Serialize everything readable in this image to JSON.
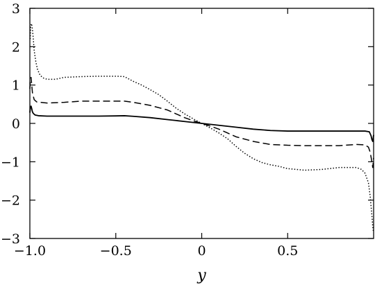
{
  "chart_data": {
    "type": "line",
    "title": "",
    "xlabel": "y",
    "ylabel": "",
    "xlim": [
      -1.0,
      1.0
    ],
    "ylim": [
      -3,
      3
    ],
    "grid": false,
    "legend": "none",
    "xticks": [
      -1.0,
      -0.5,
      0,
      0.5
    ],
    "xtick_labels": [
      "−1.0",
      "−0.5",
      "0",
      "0.5"
    ],
    "yticks": [
      -3,
      -2,
      -1,
      0,
      1,
      2,
      3
    ],
    "ytick_labels": [
      "−3",
      "−2",
      "−1",
      "0",
      "1",
      "2",
      "3"
    ],
    "series": [
      {
        "style": "solid",
        "color": "#000000",
        "points": [
          [
            -1.0,
            0.28
          ],
          [
            -0.997,
            0.42
          ],
          [
            -0.993,
            0.45
          ],
          [
            -0.99,
            0.4
          ],
          [
            -0.985,
            0.3
          ],
          [
            -0.98,
            0.26
          ],
          [
            -0.97,
            0.22
          ],
          [
            -0.95,
            0.2
          ],
          [
            -0.9,
            0.19
          ],
          [
            -0.8,
            0.19
          ],
          [
            -0.7,
            0.19
          ],
          [
            -0.6,
            0.19
          ],
          [
            -0.5,
            0.195
          ],
          [
            -0.45,
            0.2
          ],
          [
            -0.4,
            0.185
          ],
          [
            -0.3,
            0.15
          ],
          [
            -0.2,
            0.1
          ],
          [
            -0.1,
            0.05
          ],
          [
            0.0,
            0.0
          ],
          [
            0.1,
            -0.05
          ],
          [
            0.2,
            -0.1
          ],
          [
            0.3,
            -0.15
          ],
          [
            0.4,
            -0.185
          ],
          [
            0.5,
            -0.2
          ],
          [
            0.6,
            -0.2
          ],
          [
            0.7,
            -0.2
          ],
          [
            0.8,
            -0.2
          ],
          [
            0.9,
            -0.2
          ],
          [
            0.95,
            -0.2
          ],
          [
            0.975,
            -0.22
          ],
          [
            0.985,
            -0.32
          ],
          [
            0.99,
            -0.42
          ],
          [
            0.995,
            -0.47
          ],
          [
            1.0,
            -0.3
          ]
        ]
      },
      {
        "style": "dashed",
        "color": "#000000",
        "points": [
          [
            -1.0,
            0.9
          ],
          [
            -0.997,
            1.15
          ],
          [
            -0.993,
            1.2
          ],
          [
            -0.99,
            1.05
          ],
          [
            -0.985,
            0.8
          ],
          [
            -0.975,
            0.62
          ],
          [
            -0.96,
            0.56
          ],
          [
            -0.9,
            0.53
          ],
          [
            -0.8,
            0.55
          ],
          [
            -0.7,
            0.58
          ],
          [
            -0.6,
            0.58
          ],
          [
            -0.5,
            0.58
          ],
          [
            -0.45,
            0.58
          ],
          [
            -0.4,
            0.55
          ],
          [
            -0.3,
            0.47
          ],
          [
            -0.2,
            0.35
          ],
          [
            -0.15,
            0.25
          ],
          [
            -0.1,
            0.15
          ],
          [
            -0.05,
            0.07
          ],
          [
            0.0,
            0.0
          ],
          [
            0.05,
            -0.07
          ],
          [
            0.1,
            -0.15
          ],
          [
            0.15,
            -0.25
          ],
          [
            0.2,
            -0.35
          ],
          [
            0.3,
            -0.47
          ],
          [
            0.4,
            -0.55
          ],
          [
            0.5,
            -0.57
          ],
          [
            0.6,
            -0.58
          ],
          [
            0.7,
            -0.58
          ],
          [
            0.8,
            -0.58
          ],
          [
            0.9,
            -0.55
          ],
          [
            0.95,
            -0.56
          ],
          [
            0.97,
            -0.62
          ],
          [
            0.98,
            -0.75
          ],
          [
            0.99,
            -1.0
          ],
          [
            0.995,
            -1.15
          ],
          [
            1.0,
            -0.9
          ]
        ]
      },
      {
        "style": "dotted",
        "color": "#000000",
        "points": [
          [
            -0.998,
            2.2
          ],
          [
            -0.995,
            2.55
          ],
          [
            -0.99,
            2.6
          ],
          [
            -0.985,
            2.45
          ],
          [
            -0.98,
            2.2
          ],
          [
            -0.975,
            1.9
          ],
          [
            -0.965,
            1.6
          ],
          [
            -0.955,
            1.4
          ],
          [
            -0.94,
            1.25
          ],
          [
            -0.92,
            1.18
          ],
          [
            -0.9,
            1.15
          ],
          [
            -0.85,
            1.15
          ],
          [
            -0.8,
            1.2
          ],
          [
            -0.7,
            1.22
          ],
          [
            -0.6,
            1.23
          ],
          [
            -0.5,
            1.23
          ],
          [
            -0.45,
            1.22
          ],
          [
            -0.4,
            1.1
          ],
          [
            -0.35,
            1.0
          ],
          [
            -0.3,
            0.88
          ],
          [
            -0.25,
            0.75
          ],
          [
            -0.2,
            0.58
          ],
          [
            -0.15,
            0.4
          ],
          [
            -0.1,
            0.25
          ],
          [
            -0.05,
            0.12
          ],
          [
            0.0,
            0.0
          ],
          [
            0.05,
            -0.12
          ],
          [
            0.1,
            -0.25
          ],
          [
            0.15,
            -0.4
          ],
          [
            0.2,
            -0.6
          ],
          [
            0.25,
            -0.78
          ],
          [
            0.3,
            -0.92
          ],
          [
            0.35,
            -1.02
          ],
          [
            0.4,
            -1.08
          ],
          [
            0.45,
            -1.12
          ],
          [
            0.5,
            -1.18
          ],
          [
            0.55,
            -1.2
          ],
          [
            0.6,
            -1.22
          ],
          [
            0.7,
            -1.2
          ],
          [
            0.8,
            -1.15
          ],
          [
            0.9,
            -1.15
          ],
          [
            0.93,
            -1.2
          ],
          [
            0.95,
            -1.3
          ],
          [
            0.97,
            -1.55
          ],
          [
            0.98,
            -1.9
          ],
          [
            0.99,
            -2.4
          ],
          [
            0.995,
            -2.7
          ],
          [
            0.998,
            -2.8
          ]
        ]
      }
    ]
  }
}
